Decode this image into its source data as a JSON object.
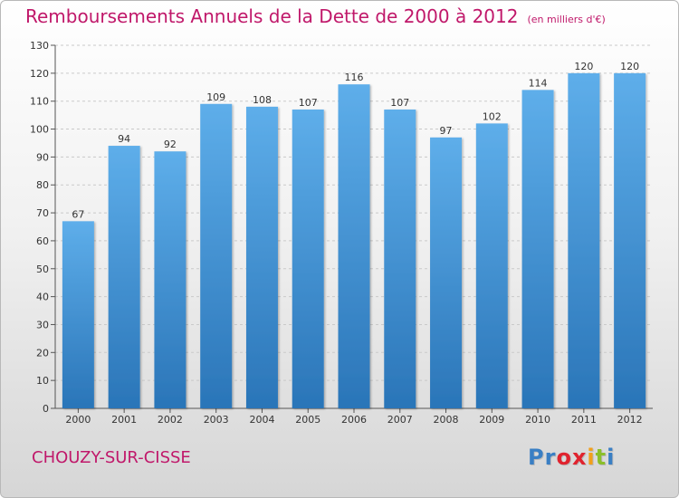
{
  "header": {
    "title": "Remboursements Annuels de la Dette de 2000 à 2012",
    "subtitle": "(en milliers d'€)"
  },
  "footer": {
    "commune": "CHOUZY-SUR-CISSE",
    "logo_letters": [
      {
        "char": "P",
        "color": "#3a7fc4"
      },
      {
        "char": "r",
        "color": "#3a7fc4"
      },
      {
        "char": "o",
        "color": "#e0232e"
      },
      {
        "char": "x",
        "color": "#e0232e"
      },
      {
        "char": "i",
        "color": "#f2a01b"
      },
      {
        "char": "t",
        "color": "#8bbf2a"
      },
      {
        "char": "i",
        "color": "#3a7fc4"
      }
    ]
  },
  "colors": {
    "bar_light": "#5eaeea",
    "bar_dark": "#2a75b8",
    "title": "#c0186a"
  },
  "chart_data": {
    "type": "bar",
    "categories": [
      "2000",
      "2001",
      "2002",
      "2003",
      "2004",
      "2005",
      "2006",
      "2007",
      "2008",
      "2009",
      "2010",
      "2011",
      "2012"
    ],
    "values": [
      67,
      94,
      92,
      109,
      108,
      107,
      116,
      107,
      97,
      102,
      114,
      120,
      120
    ],
    "ylim": [
      0,
      130
    ],
    "yticks": [
      0,
      10,
      20,
      30,
      40,
      50,
      60,
      70,
      80,
      90,
      100,
      110,
      120,
      130
    ],
    "grid": true,
    "data_labels": true
  }
}
